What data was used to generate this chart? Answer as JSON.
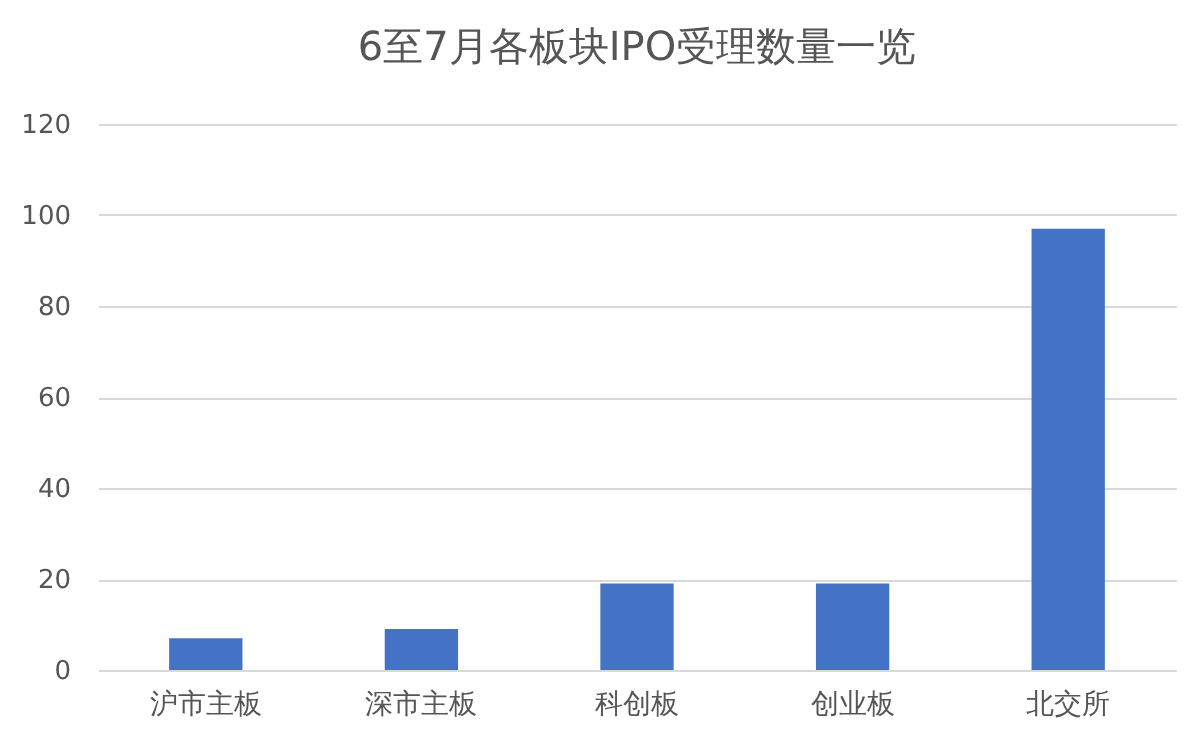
{
  "chart_data": {
    "type": "bar",
    "title": "6至7月各板块IPO受理数量一览",
    "categories": [
      "沪市主板",
      "深市主板",
      "科创板",
      "创业板",
      "北交所"
    ],
    "values": [
      7,
      9,
      19,
      19,
      97
    ],
    "color": "#4472c4",
    "ylim": [
      0,
      120
    ],
    "yticks": [
      0,
      20,
      40,
      60,
      80,
      100,
      120
    ],
    "grid": "y"
  }
}
